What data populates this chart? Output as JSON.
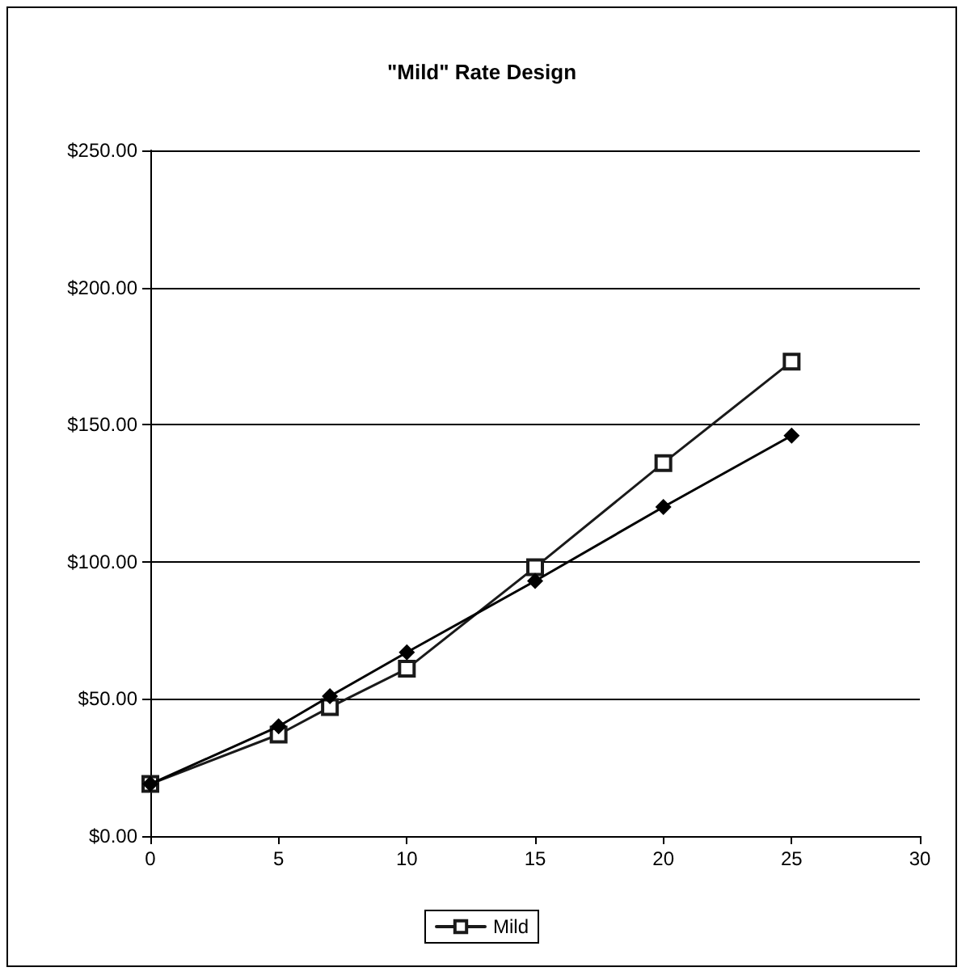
{
  "chart_data": {
    "type": "line",
    "title": "\"Mild\" Rate Design",
    "x": [
      0,
      5,
      7,
      10,
      15,
      20,
      25
    ],
    "series": [
      {
        "color": "#000000",
        "marker": "diamond",
        "values": [
          19,
          40,
          51,
          67,
          93,
          120,
          146
        ]
      },
      {
        "name": "Mild",
        "color": "#1a1a1a",
        "marker": "square",
        "values": [
          19,
          37,
          47,
          61,
          98,
          136,
          173
        ]
      }
    ],
    "xlim": [
      0,
      30
    ],
    "xticks": [
      0,
      5,
      10,
      15,
      20,
      25,
      30
    ],
    "ylim": [
      0,
      250
    ],
    "yticks": [
      {
        "value": 0,
        "label": "$0.00"
      },
      {
        "value": 50,
        "label": "$50.00"
      },
      {
        "value": 100,
        "label": "$100.00"
      },
      {
        "value": 150,
        "label": "$150.00"
      },
      {
        "value": 200,
        "label": "$200.00"
      },
      {
        "value": 250,
        "label": "$250.00"
      }
    ],
    "grid": "y",
    "legend": "bottom",
    "line_style": "solid"
  }
}
